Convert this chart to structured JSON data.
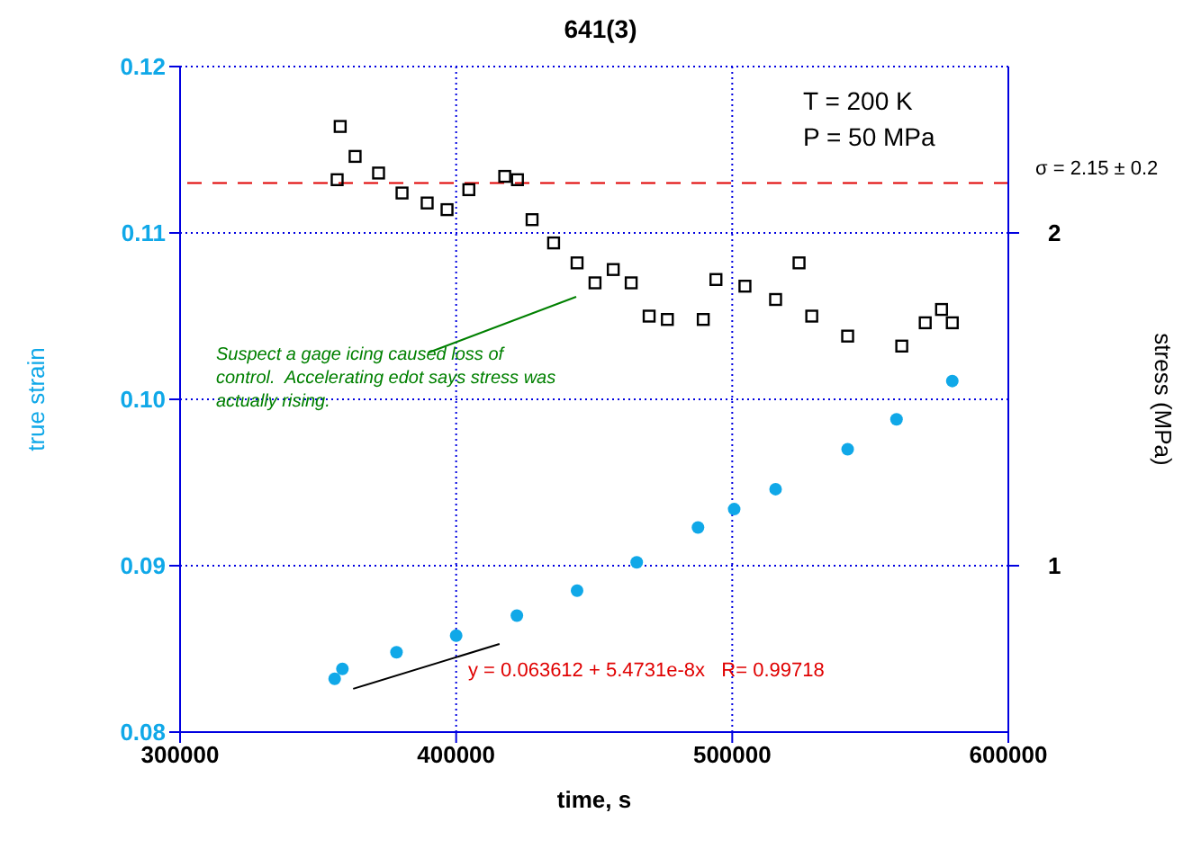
{
  "chart_data": {
    "type": "scatter",
    "title": "641(3)",
    "xlabel": "time, s",
    "ylabel": "true strain",
    "y2label": "stress (MPa)",
    "xlim": [
      300000,
      600000
    ],
    "xticks": [
      300000,
      400000,
      500000,
      600000
    ],
    "ylim": [
      0.08,
      0.12
    ],
    "yticks": [
      0.08,
      0.09,
      {
        "value": 0.1,
        "label": "0.10"
      },
      0.11,
      0.12
    ],
    "y2lim": [
      0.5,
      2.5
    ],
    "y2ticks": [
      1,
      2
    ],
    "grid": true,
    "series": [
      {
        "color": "#10a8e8",
        "marker": "circle",
        "x": [
          356000,
          358800,
          378400,
          400000,
          422000,
          443800,
          465400,
          487600,
          500700,
          515700,
          541800,
          559500,
          579700
        ],
        "values": [
          0.0832,
          0.0838,
          0.0848,
          0.0858,
          0.087,
          0.0885,
          0.0902,
          0.0923,
          0.0934,
          0.0946,
          0.097,
          0.0988,
          0.1011
        ]
      },
      {
        "color": "#000000",
        "marker": "square",
        "axis": "y2",
        "x": [
          356900,
          358000,
          363400,
          371900,
          380400,
          389500,
          396700,
          404600,
          417600,
          422200,
          427500,
          435300,
          443800,
          450300,
          456900,
          463400,
          469900,
          476500,
          489500,
          494100,
          504600,
          515700,
          524200,
          528800,
          541800,
          561400,
          569900,
          575800,
          579700
        ],
        "values": [
          2.16,
          2.32,
          2.23,
          2.18,
          2.12,
          2.09,
          2.07,
          2.13,
          2.17,
          2.16,
          2.04,
          1.97,
          1.91,
          1.85,
          1.89,
          1.85,
          1.75,
          1.74,
          1.74,
          1.86,
          1.84,
          1.8,
          1.91,
          1.75,
          1.69,
          1.66,
          1.73,
          1.77,
          1.73
        ]
      },
      {
        "type": "line",
        "color": "#000000",
        "x": [
          362700,
          415700
        ],
        "values": [
          0.0826,
          0.0853
        ]
      }
    ],
    "ref_lines": [
      {
        "axis": "y2",
        "value": 2.15,
        "label": "σ = 2.15 ± 0.2",
        "color": "#e00000",
        "line_style": "dashed"
      }
    ],
    "annotations": [
      "T = 200 K",
      "P = 50 MPa",
      "y = 0.063612 + 5.4731e-8x   R= 0.99718",
      "Suspect a gage icing caused loss of control.  Accelerating edot says stress was actually rising."
    ]
  }
}
